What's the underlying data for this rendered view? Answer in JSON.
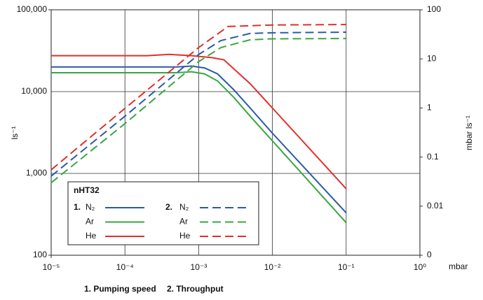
{
  "chart_data": {
    "type": "line",
    "y_label": "ls⁻¹",
    "y2_label": "mbar ls⁻¹",
    "x_unit": "mbar",
    "log_x": true,
    "log_y": true,
    "log_y2": true,
    "grid": true,
    "xlim": [
      1e-05,
      1
    ],
    "ylim": [
      100,
      100000
    ],
    "y2lim": [
      0.001,
      100
    ],
    "xticks": [
      {
        "value": 1e-05,
        "label": "10⁻⁵"
      },
      {
        "value": 0.0001,
        "label": "10⁻⁴"
      },
      {
        "value": 0.001,
        "label": "10⁻³"
      },
      {
        "value": 0.01,
        "label": "10⁻²"
      },
      {
        "value": 0.1,
        "label": "10⁻¹"
      },
      {
        "value": 1,
        "label": "10⁰"
      }
    ],
    "yticks": [
      100,
      {
        "value": 1000,
        "label": "1,000"
      },
      {
        "value": 10000,
        "label": "10,000"
      },
      {
        "value": 100000,
        "label": "100,000"
      }
    ],
    "y2ticks": [
      {
        "value": 0.001,
        "label": "0"
      },
      0.01,
      0.1,
      1,
      10,
      100
    ],
    "legend_title": "nHT32",
    "legend_groups": [
      "1.",
      "2."
    ],
    "caption": [
      "1. Pumping speed",
      "2. Throughput"
    ],
    "series": [
      {
        "name": "N₂",
        "color": "#2a5aa8",
        "dashed": false,
        "x": [
          1e-05,
          0.0001,
          0.0005,
          0.0008,
          0.0012,
          0.0018,
          0.003,
          0.005,
          0.01,
          0.1
        ],
        "values": [
          20000,
          20000,
          20000,
          20500,
          19500,
          16500,
          10500,
          6300,
          3100,
          330
        ]
      },
      {
        "name": "Ar",
        "color": "#3aa640",
        "dashed": false,
        "x": [
          1e-05,
          0.0001,
          0.0005,
          0.0008,
          0.0012,
          0.0018,
          0.003,
          0.005,
          0.01,
          0.1
        ],
        "values": [
          17000,
          17000,
          17000,
          17500,
          16500,
          13500,
          8500,
          5000,
          2500,
          250
        ]
      },
      {
        "name": "He",
        "color": "#e0302a",
        "dashed": false,
        "x": [
          1e-05,
          0.0001,
          0.0002,
          0.0004,
          0.0008,
          0.0015,
          0.0022,
          0.005,
          0.01,
          0.1
        ],
        "values": [
          27500,
          27500,
          27500,
          28500,
          27500,
          26000,
          24500,
          12500,
          6300,
          650
        ]
      },
      {
        "name": "N₂",
        "color": "#2a5aa8",
        "dashed": true,
        "axis": "y2",
        "x": [
          1e-05,
          0.0001,
          0.001,
          0.002,
          0.005,
          0.01,
          0.1
        ],
        "values": [
          0.041,
          0.68,
          12.3,
          23.6,
          33,
          34,
          35
        ]
      },
      {
        "name": "Ar",
        "color": "#3aa640",
        "dashed": true,
        "axis": "y2",
        "x": [
          1e-05,
          0.0001,
          0.001,
          0.002,
          0.005,
          0.01,
          0.1
        ],
        "values": [
          0.03,
          0.48,
          8.8,
          17,
          24.5,
          25.6,
          26
        ]
      },
      {
        "name": "He",
        "color": "#e0302a",
        "dashed": true,
        "axis": "y2",
        "x": [
          1e-05,
          0.0001,
          0.001,
          0.0025,
          0.01,
          0.1
        ],
        "values": [
          0.055,
          0.98,
          17,
          45.6,
          49,
          50
        ]
      }
    ]
  }
}
